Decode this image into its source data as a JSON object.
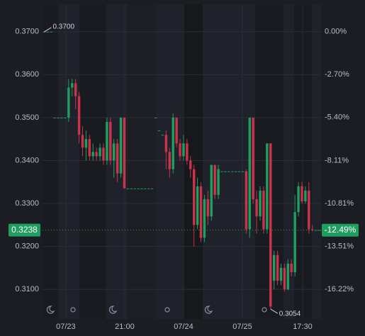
{
  "chart_data": {
    "type": "candlestick",
    "open": [
      0.37,
      0.37,
      0.37,
      0.35,
      0.35,
      0.35,
      0.35,
      0.35,
      0.357,
      0.358,
      0.355,
      0.346,
      0.343,
      0.345,
      0.341,
      0.342,
      0.341,
      0.343,
      0.34,
      0.349,
      0.34,
      0.344,
      0.337,
      0.35,
      0.3335,
      0.3335,
      0.3335,
      0.3335,
      0.3335,
      0.3335,
      0.3335,
      0.3335,
      0.35,
      0.347,
      0.346,
      0.346,
      0.342,
      0.338,
      0.35,
      0.344,
      0.341,
      0.344,
      0.34,
      0.338,
      0.325,
      0.334,
      0.322,
      0.331,
      0.327,
      0.339,
      0.332,
      0.3375,
      0.3375,
      0.3375,
      0.3375,
      0.3375,
      0.3375,
      0.3375,
      0.3375,
      0.324,
      0.35,
      0.331,
      0.327,
      0.333,
      0.324,
      0.344,
      0.312,
      0.318,
      0.312,
      0.315,
      0.31,
      0.316,
      0.314,
      0.328,
      0.334,
      0.3305,
      0.333,
      0.324,
      0.3238,
      0.3238
    ],
    "high": [
      0.37,
      0.37,
      0.37,
      0.35,
      0.35,
      0.35,
      0.35,
      0.359,
      0.359,
      0.359,
      0.356,
      0.348,
      0.347,
      0.346,
      0.344,
      0.343,
      0.344,
      0.344,
      0.35,
      0.35,
      0.345,
      0.345,
      0.35,
      0.35,
      0.3335,
      0.3335,
      0.3335,
      0.3335,
      0.3335,
      0.3335,
      0.3335,
      0.3335,
      0.35,
      0.347,
      0.346,
      0.347,
      0.343,
      0.351,
      0.35,
      0.345,
      0.346,
      0.345,
      0.341,
      0.339,
      0.336,
      0.335,
      0.332,
      0.333,
      0.339,
      0.339,
      0.339,
      0.3375,
      0.3375,
      0.3375,
      0.3375,
      0.3375,
      0.3375,
      0.3375,
      0.338,
      0.35,
      0.35,
      0.333,
      0.334,
      0.334,
      0.344,
      0.344,
      0.319,
      0.319,
      0.316,
      0.316,
      0.317,
      0.317,
      0.332,
      0.335,
      0.335,
      0.334,
      0.335,
      0.325,
      0.3238,
      0.3238
    ],
    "low": [
      0.37,
      0.37,
      0.37,
      0.35,
      0.35,
      0.35,
      0.35,
      0.349,
      0.355,
      0.352,
      0.344,
      0.341,
      0.34,
      0.34,
      0.34,
      0.34,
      0.34,
      0.339,
      0.339,
      0.339,
      0.336,
      0.335,
      0.336,
      0.3335,
      0.3335,
      0.3335,
      0.3335,
      0.3335,
      0.3335,
      0.3335,
      0.3335,
      0.3335,
      0.35,
      0.347,
      0.346,
      0.338,
      0.336,
      0.337,
      0.343,
      0.34,
      0.34,
      0.339,
      0.336,
      0.32,
      0.324,
      0.321,
      0.321,
      0.325,
      0.326,
      0.331,
      0.331,
      0.3375,
      0.3375,
      0.3375,
      0.3375,
      0.3375,
      0.3375,
      0.3375,
      0.323,
      0.322,
      0.33,
      0.323,
      0.326,
      0.323,
      0.323,
      0.3054,
      0.31,
      0.311,
      0.311,
      0.3095,
      0.3098,
      0.313,
      0.313,
      0.327,
      0.33,
      0.33,
      0.323,
      0.3235,
      0.3238,
      0.3238
    ],
    "close": [
      0.37,
      0.37,
      0.37,
      0.35,
      0.35,
      0.35,
      0.35,
      0.357,
      0.358,
      0.355,
      0.346,
      0.343,
      0.345,
      0.341,
      0.342,
      0.341,
      0.343,
      0.34,
      0.349,
      0.34,
      0.344,
      0.337,
      0.35,
      0.3335,
      0.3335,
      0.3335,
      0.3335,
      0.3335,
      0.3335,
      0.3335,
      0.3335,
      0.3335,
      0.35,
      0.347,
      0.346,
      0.342,
      0.338,
      0.35,
      0.344,
      0.341,
      0.344,
      0.34,
      0.338,
      0.325,
      0.334,
      0.322,
      0.331,
      0.327,
      0.339,
      0.332,
      0.338,
      0.3375,
      0.3375,
      0.3375,
      0.3375,
      0.3375,
      0.3375,
      0.3375,
      0.324,
      0.35,
      0.331,
      0.327,
      0.333,
      0.324,
      0.344,
      0.306,
      0.318,
      0.312,
      0.315,
      0.31,
      0.316,
      0.314,
      0.328,
      0.334,
      0.3305,
      0.333,
      0.324,
      0.3238,
      0.3238,
      0.3238
    ],
    "up_color": "#1f9e5f",
    "down_color": "#c9334b",
    "xlim": [
      0,
      80
    ],
    "xticks": [
      {
        "value": 6.7,
        "label": "07/23"
      },
      {
        "value": 23.6,
        "label": "21:00"
      },
      {
        "value": 40.5,
        "label": "07/24"
      },
      {
        "value": 57.4,
        "label": "07/25"
      },
      {
        "value": 74.7,
        "label": "17:30"
      }
    ],
    "ylim": [
      0.3031,
      0.3764
    ],
    "yticks": [
      {
        "value": 0.37,
        "label": "0.3700"
      },
      {
        "value": 0.36,
        "label": "0.3600"
      },
      {
        "value": 0.35,
        "label": "0.3500"
      },
      {
        "value": 0.34,
        "label": "0.3400"
      },
      {
        "value": 0.33,
        "label": "0.3300"
      },
      {
        "value": 0.32,
        "label": "0.3200"
      },
      {
        "value": 0.31,
        "label": "0.3100"
      }
    ],
    "y2lim": [
      -18.08,
      1.73
    ],
    "y2ticks": [
      {
        "value": 0,
        "label": "0.00%"
      },
      {
        "value": -2.7,
        "label": "-2.70%"
      },
      {
        "value": -5.4,
        "label": "-5.40%"
      },
      {
        "value": -8.11,
        "label": "-8.11%"
      },
      {
        "value": -10.81,
        "label": "-10.81%"
      },
      {
        "value": -13.51,
        "label": "-13.51%"
      },
      {
        "value": -16.22,
        "label": "-16.22%"
      }
    ],
    "last_price": {
      "value": 0.3238,
      "label": "0.3238"
    },
    "last_change": {
      "value": -12.49,
      "label": "-12.49%"
    },
    "last_color": "#1f9e5f",
    "max_label": {
      "value": 0.37,
      "label": "0.3700"
    },
    "min_label": {
      "value": 0.3054,
      "label": "0.3054"
    },
    "grid": true
  }
}
